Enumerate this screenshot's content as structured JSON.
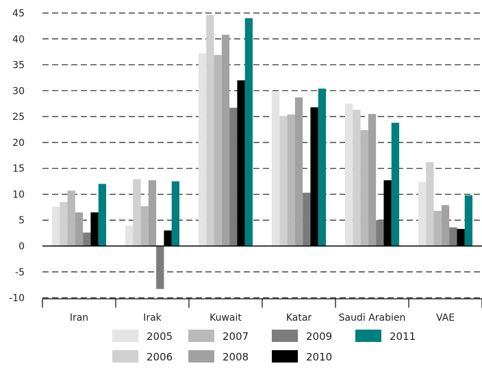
{
  "chart_data": {
    "type": "bar",
    "categories": [
      "Iran",
      "Irak",
      "Kuwait",
      "Katar",
      "Saudi Arabien",
      "VAE"
    ],
    "series": [
      {
        "name": "2005",
        "color": "#e4e4e4",
        "values": [
          7.6,
          3.9,
          37.2,
          29.8,
          27.5,
          12.4
        ]
      },
      {
        "name": "2006",
        "color": "#d0d0d0",
        "values": [
          8.5,
          12.9,
          44.6,
          25.1,
          26.3,
          16.2
        ]
      },
      {
        "name": "2007",
        "color": "#b9b9b9",
        "values": [
          10.7,
          7.7,
          36.9,
          25.4,
          22.4,
          6.8
        ]
      },
      {
        "name": "2008",
        "color": "#a2a2a2",
        "values": [
          6.5,
          12.7,
          40.8,
          28.7,
          25.5,
          7.9
        ]
      },
      {
        "name": "2009",
        "color": "#7c7c7c",
        "values": [
          2.6,
          -8.3,
          26.7,
          10.3,
          5.0,
          3.6
        ]
      },
      {
        "name": "2010",
        "color": "#000000",
        "values": [
          6.5,
          3.0,
          32.0,
          26.8,
          12.7,
          3.3
        ]
      },
      {
        "name": "2011",
        "color": "#007f80",
        "values": [
          12.0,
          12.5,
          44.0,
          30.4,
          23.8,
          9.8
        ]
      }
    ],
    "yticks": [
      "45",
      "40",
      "35",
      "30",
      "25",
      "20",
      "15",
      "10",
      "5",
      "0",
      "-5",
      "-10"
    ],
    "ylim": [
      -10,
      45
    ],
    "grid": true,
    "legend": "bottom"
  }
}
